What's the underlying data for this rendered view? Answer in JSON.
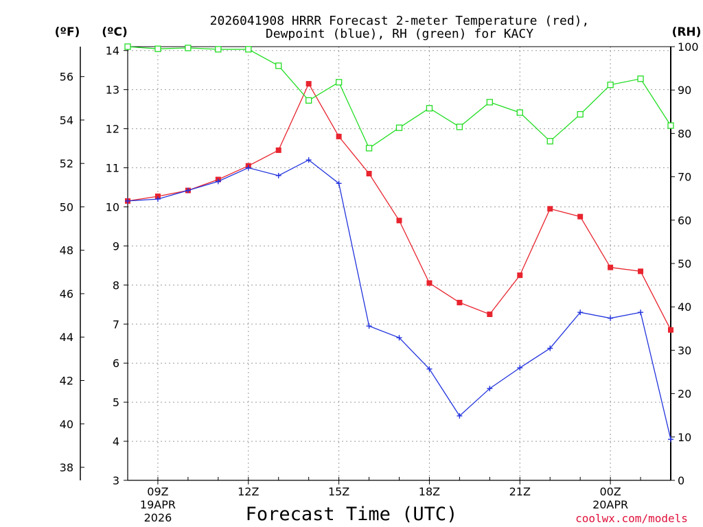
{
  "chart_data": {
    "type": "line",
    "title_line1": "2026041908 HRRR Forecast 2-meter Temperature (red),",
    "title_line2": "Dewpoint (blue), RH (green) for KACY",
    "unit_f": "(ºF)",
    "unit_c": "(ºC)",
    "unit_rh": "(RH)",
    "xlabel": "Forecast Time (UTC)",
    "credit": "coolwx.com/models",
    "ylim_c": [
      3,
      14.1
    ],
    "ylim_rh": [
      0,
      100
    ],
    "x_hours": [
      8,
      9,
      10,
      11,
      12,
      13,
      14,
      15,
      16,
      17,
      18,
      19,
      20,
      21,
      22,
      23,
      24,
      25,
      26
    ],
    "x_range": [
      8,
      26
    ],
    "x_ticks": [
      {
        "hour": 9,
        "label": "09Z",
        "sub1": "19APR",
        "sub2": "2026"
      },
      {
        "hour": 12,
        "label": "12Z",
        "sub1": "",
        "sub2": ""
      },
      {
        "hour": 15,
        "label": "15Z",
        "sub1": "",
        "sub2": ""
      },
      {
        "hour": 18,
        "label": "18Z",
        "sub1": "",
        "sub2": ""
      },
      {
        "hour": 21,
        "label": "21Z",
        "sub1": "",
        "sub2": ""
      },
      {
        "hour": 24,
        "label": "00Z",
        "sub1": "20APR",
        "sub2": ""
      }
    ],
    "c_ticks": [
      "3",
      "4",
      "5",
      "6",
      "7",
      "8",
      "9",
      "10",
      "11",
      "12",
      "13",
      "14"
    ],
    "f_ticks": [
      "38",
      "40",
      "42",
      "44",
      "46",
      "48",
      "50",
      "52",
      "54",
      "56"
    ],
    "rh_ticks": [
      "0",
      "10",
      "20",
      "30",
      "40",
      "50",
      "60",
      "70",
      "80",
      "90",
      "100"
    ],
    "series": [
      {
        "name": "Temperature",
        "color": "#e8242e",
        "marker": "square-filled",
        "values": [
          10.15,
          10.27,
          10.42,
          10.7,
          11.05,
          11.45,
          13.15,
          11.8,
          10.85,
          9.65,
          8.05,
          7.55,
          7.25,
          8.25,
          9.95,
          9.75,
          8.45,
          8.35,
          6.85
        ]
      },
      {
        "name": "Dewpoint",
        "color": "#2233dd",
        "marker": "plus",
        "values": [
          10.15,
          10.2,
          10.42,
          10.65,
          11.0,
          10.8,
          11.2,
          10.6,
          6.95,
          6.65,
          5.85,
          4.65,
          5.35,
          5.88,
          6.38,
          7.3,
          7.15,
          7.3,
          4.05
        ]
      },
      {
        "name": "RH",
        "color": "#22dd22",
        "marker": "square-open",
        "values": [
          100,
          99.5,
          99.7,
          99.4,
          99.4,
          95.6,
          87.6,
          91.8,
          76.6,
          81.3,
          85.8,
          81.5,
          87.2,
          84.8,
          78.2,
          84.4,
          91.2,
          92.6,
          81.8
        ]
      }
    ]
  }
}
